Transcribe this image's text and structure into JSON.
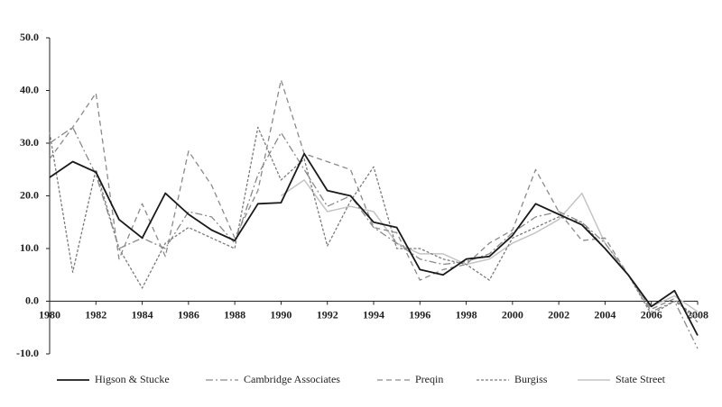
{
  "chart_data": {
    "type": "line",
    "x": [
      1980,
      1981,
      1982,
      1983,
      1984,
      1985,
      1986,
      1987,
      1988,
      1989,
      1990,
      1991,
      1992,
      1993,
      1994,
      1995,
      1996,
      1997,
      1998,
      1999,
      2000,
      2001,
      2002,
      2003,
      2004,
      2005,
      2006,
      2007,
      2008
    ],
    "xlim": [
      1980,
      2008
    ],
    "xticks": [
      1980,
      1982,
      1984,
      1986,
      1988,
      1990,
      1992,
      1994,
      1996,
      1998,
      2000,
      2002,
      2004,
      2006,
      2008
    ],
    "ylim": [
      -10,
      50
    ],
    "yticks": [
      {
        "value": 50,
        "label": "50.0"
      },
      {
        "value": 40,
        "label": "40.0"
      },
      {
        "value": 30,
        "label": "30.0"
      },
      {
        "value": 20,
        "label": "20.0"
      },
      {
        "value": 10,
        "label": "10.0"
      },
      {
        "value": 0,
        "label": "0.0"
      },
      {
        "value": -10,
        "label": "-10.0"
      }
    ],
    "legend": "bottom",
    "series": [
      {
        "name": "Higson & Stucke",
        "color": "#1a1a1a",
        "dash": "none",
        "width": 1.8,
        "values": [
          23.5,
          26.5,
          24.5,
          15.5,
          12,
          20.5,
          16.5,
          13.5,
          11.5,
          18.5,
          18.7,
          28,
          21,
          20,
          15,
          14,
          6,
          5,
          8,
          8.5,
          12.5,
          18.5,
          16.5,
          14.5,
          10,
          5,
          -1,
          2,
          -6.5
        ]
      },
      {
        "name": "Cambridge Associates",
        "color": "#8a8a8a",
        "dash": "8 3 2 3",
        "width": 1.3,
        "values": [
          30,
          33,
          24,
          10,
          12,
          10,
          17,
          16,
          11,
          24,
          32,
          25,
          18,
          20,
          14,
          11,
          8,
          7,
          7.5,
          9,
          13,
          16,
          17,
          15,
          11,
          5,
          -2,
          0,
          -9
        ]
      },
      {
        "name": "Preqin",
        "color": "#8a8a8a",
        "dash": "6 4",
        "width": 1.3,
        "values": [
          27,
          33,
          39.5,
          8,
          18.5,
          8.5,
          28.5,
          22,
          12,
          21,
          42,
          28,
          26.5,
          25,
          14,
          13,
          4,
          6,
          7,
          11,
          13.5,
          25,
          17,
          11.5,
          12,
          5,
          -1.5,
          0.5,
          -4
        ]
      },
      {
        "name": "Burgiss",
        "color": "#7a7a7a",
        "dash": "3 2",
        "width": 1.3,
        "values": [
          32,
          5.5,
          25,
          10,
          2.5,
          11,
          14,
          12,
          10,
          33,
          23,
          27,
          10.5,
          19,
          25.5,
          10,
          10,
          8,
          7,
          4,
          12,
          14,
          16,
          15,
          10,
          5,
          -2.5,
          0,
          -3
        ]
      },
      {
        "name": "State Street",
        "color": "#c4c4c4",
        "dash": "none",
        "width": 1.5,
        "values": [
          null,
          null,
          null,
          null,
          null,
          null,
          null,
          null,
          null,
          null,
          20,
          23,
          17,
          18,
          17,
          11,
          9,
          9,
          7,
          8,
          11,
          13,
          15.5,
          20.5,
          11,
          5,
          -1,
          1,
          -2
        ]
      }
    ]
  }
}
